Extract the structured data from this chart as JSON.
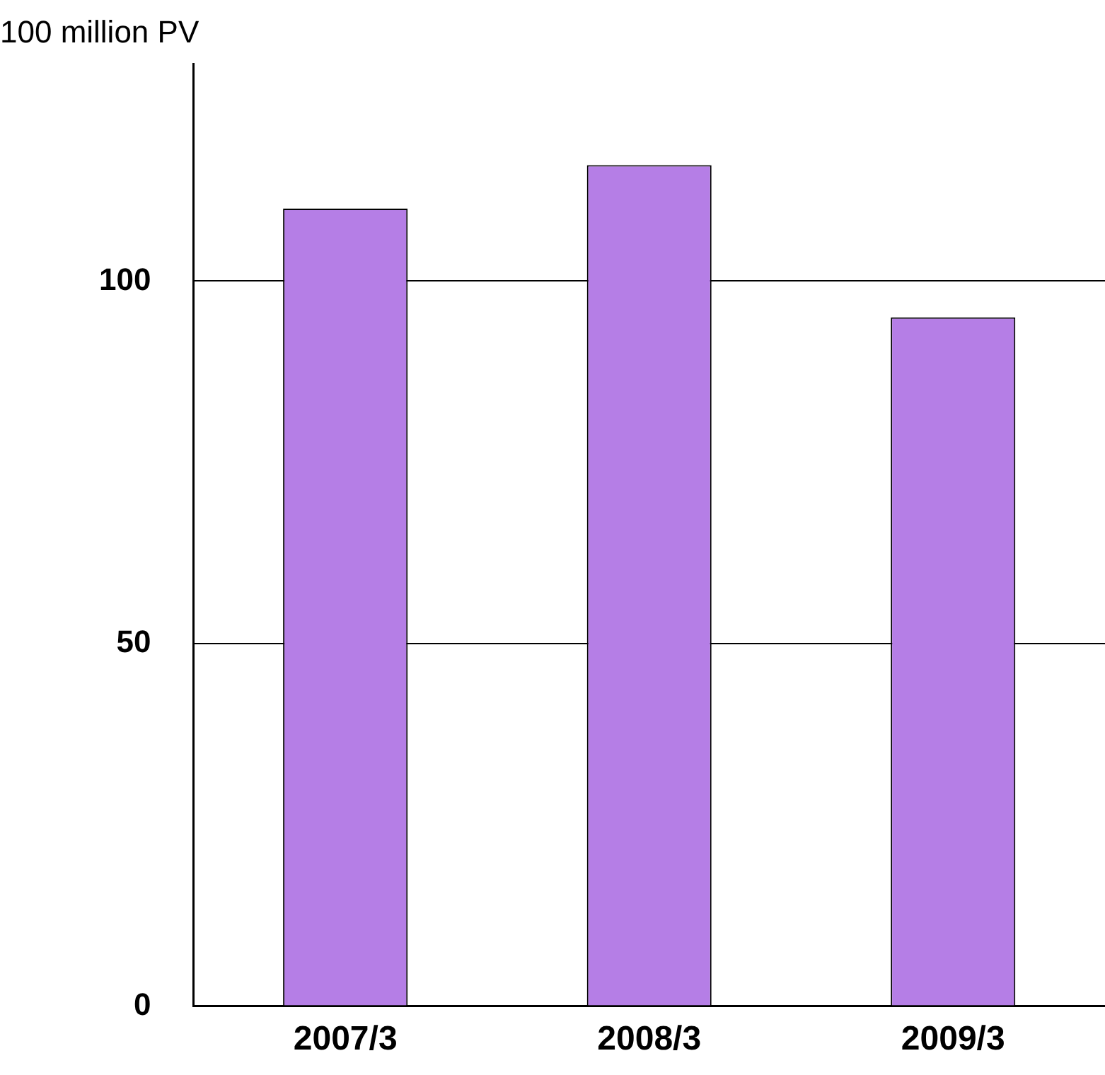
{
  "chart_data": {
    "type": "bar",
    "ylabel": "100 million PV",
    "categories": [
      "2007/3",
      "2008/3",
      "2009/3"
    ],
    "values": [
      110,
      116,
      95
    ],
    "color": "#b57ee6",
    "ylim": [
      0,
      130
    ],
    "yticks": [
      0,
      50,
      100
    ],
    "grid": "y"
  }
}
